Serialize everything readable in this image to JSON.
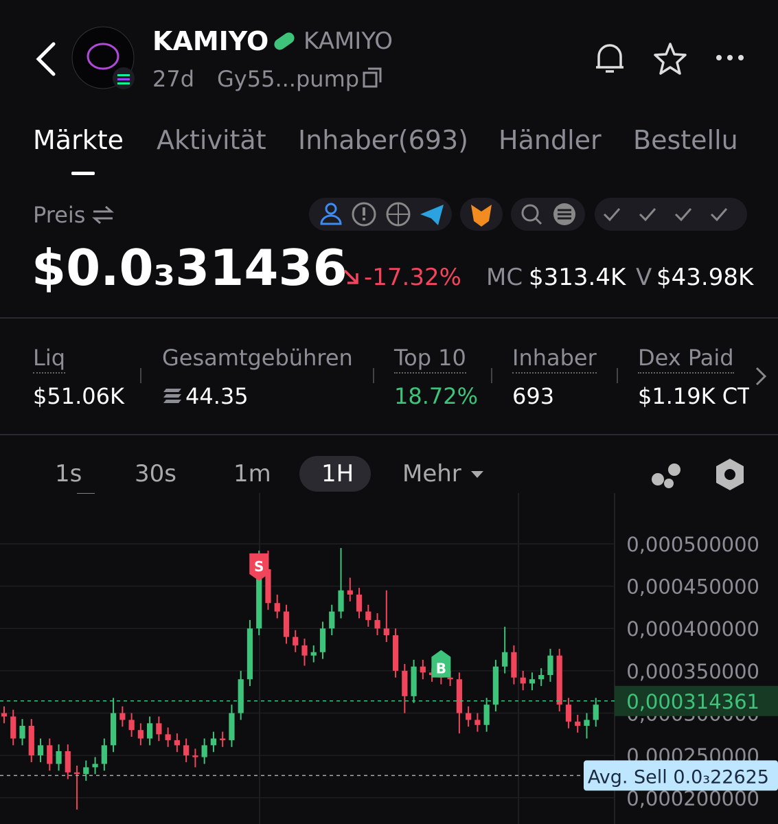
{
  "header": {
    "name": "KAMIYO",
    "symbol": "KAMIYO",
    "age": "27d",
    "address": "Gy55...pump"
  },
  "tabs": [
    "Märkte",
    "Aktivität",
    "Inhaber(693)",
    "Händler",
    "Bestellu"
  ],
  "price": {
    "label": "Preis",
    "value": "$0.0₃31436",
    "change": "-17.32%",
    "mc_label": "MC",
    "mc": "$313.4K",
    "v_label": "V",
    "volume": "$43.98K"
  },
  "stats": [
    {
      "label": "Liq",
      "value": "$51.06K"
    },
    {
      "label": "Gesamtgebühren",
      "value": "44.35"
    },
    {
      "label": "Top 10",
      "value": "18.72%"
    },
    {
      "label": "Inhaber",
      "value": "693"
    },
    {
      "label": "Dex Paid",
      "value": "$1.19K CT"
    }
  ],
  "intervals": [
    "1s",
    "30s",
    "1m",
    "1H",
    "Mehr"
  ],
  "chart": {
    "type": "candlestick",
    "ylim": [
      0.000169,
      0.00056
    ],
    "yticks": [
      {
        "value": 0.0005,
        "label": "0,000500000"
      },
      {
        "value": 0.00045,
        "label": "0,000450000"
      },
      {
        "value": 0.0004,
        "label": "0,000400000"
      },
      {
        "value": 0.00035,
        "label": "0,000350000"
      },
      {
        "value": 0.0003,
        "label": "0,000300000"
      },
      {
        "value": 0.00025,
        "label": "0,000250000"
      },
      {
        "value": 0.0002,
        "label": "0,000200000"
      }
    ],
    "current": {
      "value": 0.000314361,
      "label": "0,000314361"
    },
    "avg_sell": {
      "value": 0.00022625,
      "label": "Avg. Sell 0.0₃22625"
    },
    "low": [
      0.000288,
      0.000262,
      0.000262,
      0.000242,
      0.000242,
      0.000232,
      0.000232,
      0.000222,
      0.000186,
      0.00022,
      0.000228,
      0.000232,
      0.000254,
      0.000284,
      0.000272,
      0.000262,
      0.000262,
      0.000267,
      0.00026,
      0.000254,
      0.000242,
      0.000236,
      0.00024,
      0.000254,
      0.00026,
      0.00026,
      0.000292,
      0.000332,
      0.000392,
      0.000422,
      0.000412,
      0.000382,
      0.000372,
      0.000356,
      0.00036,
      0.000364,
      0.000392,
      0.000412,
      0.000432,
      0.000412,
      0.000402,
      0.000392,
      0.000384,
      0.000342,
      0.0003,
      0.000312,
      0.00034,
      0.000337,
      0.000334,
      0.000332,
      0.000276,
      0.000284,
      0.000278,
      0.000278,
      0.000302,
      0.000347,
      0.000334,
      0.000327,
      0.000327,
      0.000332,
      0.000337,
      0.000302,
      0.000282,
      0.000277,
      0.00027,
      0.000284
    ],
    "markers": [
      {
        "label": "S",
        "index": 28
      },
      {
        "label": "B",
        "index": 48
      }
    ],
    "open": [
      0.0003,
      0.000296,
      0.00027,
      0.000285,
      0.00025,
      0.000262,
      0.00024,
      0.000255,
      0.00023,
      0.000228,
      0.000236,
      0.00024,
      0.000262,
      0.0003,
      0.000292,
      0.00028,
      0.00027,
      0.000288,
      0.000275,
      0.000268,
      0.000262,
      0.00025,
      0.000248,
      0.000262,
      0.00027,
      0.000268,
      0.0003,
      0.00034,
      0.0004,
      0.00047,
      0.00043,
      0.00042,
      0.00039,
      0.00038,
      0.000368,
      0.000372,
      0.0004,
      0.00042,
      0.000445,
      0.00044,
      0.00042,
      0.00041,
      0.0004,
      0.000392,
      0.00035,
      0.00032,
      0.000355,
      0.000348,
      0.000345,
      0.000342,
      0.00034,
      0.0003,
      0.000292,
      0.000286,
      0.00031,
      0.000355,
      0.000372,
      0.000342,
      0.000335,
      0.00034,
      0.000345,
      0.000368,
      0.00031,
      0.00029,
      0.000285,
      0.000292
    ],
    "high": [
      0.000308,
      0.000304,
      0.000293,
      0.000293,
      0.00027,
      0.00027,
      0.000263,
      0.000263,
      0.000238,
      0.000244,
      0.000248,
      0.00027,
      0.000318,
      0.000308,
      0.0003,
      0.000288,
      0.000296,
      0.000296,
      0.000283,
      0.000276,
      0.00027,
      0.000258,
      0.00027,
      0.000278,
      0.000278,
      0.00031,
      0.00035,
      0.00041,
      0.000492,
      0.000492,
      0.00044,
      0.000428,
      0.000398,
      0.000388,
      0.00038,
      0.000408,
      0.000428,
      0.000495,
      0.00046,
      0.000448,
      0.000428,
      0.000418,
      0.000445,
      0.0004,
      0.000358,
      0.000363,
      0.000363,
      0.000353,
      0.00035,
      0.00035,
      0.000348,
      0.000308,
      0.0003,
      0.000318,
      0.000363,
      0.000402,
      0.00038,
      0.00035,
      0.000348,
      0.000353,
      0.000376,
      0.000376,
      0.000318,
      0.000298,
      0.0003,
      0.000318
    ],
    "close": [
      0.000296,
      0.00027,
      0.000285,
      0.00025,
      0.000262,
      0.00024,
      0.000255,
      0.00023,
      0.000228,
      0.000236,
      0.00024,
      0.000262,
      0.0003,
      0.000292,
      0.00028,
      0.00027,
      0.000288,
      0.000275,
      0.000268,
      0.000262,
      0.00025,
      0.000248,
      0.000262,
      0.00027,
      0.000268,
      0.0003,
      0.00034,
      0.0004,
      0.00047,
      0.00043,
      0.00042,
      0.00039,
      0.00038,
      0.000368,
      0.000372,
      0.0004,
      0.00042,
      0.000445,
      0.00044,
      0.00042,
      0.00041,
      0.0004,
      0.000392,
      0.00035,
      0.00032,
      0.000355,
      0.000348,
      0.000345,
      0.000342,
      0.00034,
      0.0003,
      0.000292,
      0.000286,
      0.00031,
      0.000355,
      0.000372,
      0.000342,
      0.000335,
      0.00034,
      0.000345,
      0.000368,
      0.00031,
      0.00029,
      0.000285,
      0.000292,
      0.00031
    ],
    "up_color": "#3ec47a",
    "down_color": "#f0455a"
  }
}
